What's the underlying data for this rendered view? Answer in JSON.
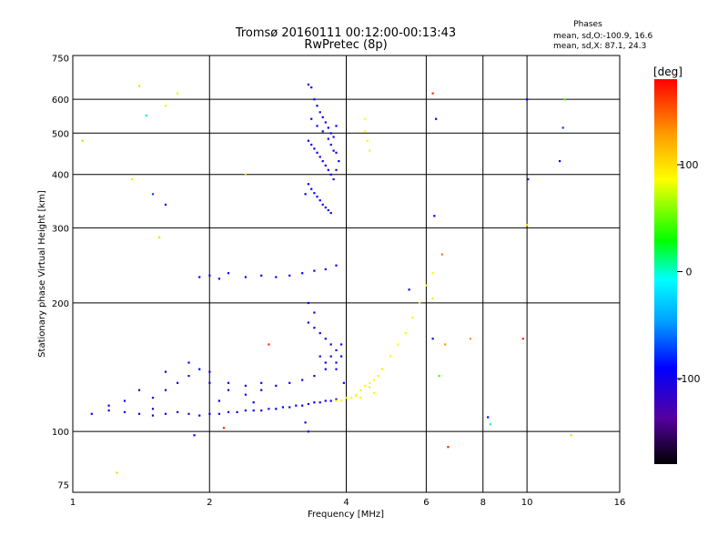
{
  "chart_data": {
    "type": "scatter",
    "title": "Tromsø 20160111 00:12:00-00:13:43",
    "subtitle": "RwPretec (8p)",
    "xlabel": "Frequency [MHz]",
    "ylabel": "Stationary phase Virtual Height [km]",
    "x_scale": "log",
    "y_scale": "log",
    "xlim": [
      1,
      16
    ],
    "ylim": [
      72,
      760
    ],
    "x_ticks": [
      1,
      2,
      4,
      6,
      8,
      10,
      16
    ],
    "y_ticks": [
      75,
      100,
      200,
      300,
      400,
      500,
      600,
      750
    ],
    "grid": true,
    "stats": {
      "heading": "Phases",
      "line_o": "mean, sd,O:-100.9, 16.6",
      "line_x": "mean, sd,X:  87.1, 24.3"
    },
    "colorbar": {
      "label": "[deg]",
      "ticks": [
        100,
        0,
        -100
      ],
      "range": [
        -180,
        180
      ],
      "colors": [
        "#000000",
        "#5500a0",
        "#0000ff",
        "#00a0ff",
        "#00ffff",
        "#00ff00",
        "#ffff00",
        "#ff9900",
        "#ff0000"
      ]
    },
    "series": [
      {
        "trace": "F2 layer (blue, O-mode)",
        "points": [
          [
            3.3,
            650,
            -110
          ],
          [
            3.35,
            640,
            -110
          ],
          [
            3.4,
            600,
            -105
          ],
          [
            3.45,
            580,
            -100
          ],
          [
            3.5,
            560,
            -120
          ],
          [
            3.55,
            545,
            -100
          ],
          [
            3.6,
            530,
            -110
          ],
          [
            3.65,
            515,
            -100
          ],
          [
            3.7,
            500,
            -105
          ],
          [
            3.75,
            490,
            -110
          ],
          [
            3.3,
            480,
            -100
          ],
          [
            3.35,
            470,
            -110
          ],
          [
            3.4,
            460,
            -105
          ],
          [
            3.45,
            450,
            -100
          ],
          [
            3.5,
            440,
            -115
          ],
          [
            3.55,
            430,
            -100
          ],
          [
            3.6,
            420,
            -110
          ],
          [
            3.65,
            410,
            -100
          ],
          [
            3.7,
            400,
            -105
          ],
          [
            3.75,
            390,
            -110
          ],
          [
            3.3,
            380,
            -100
          ],
          [
            3.35,
            370,
            -105
          ],
          [
            3.4,
            362,
            -110
          ],
          [
            3.45,
            355,
            -100
          ],
          [
            3.5,
            348,
            -105
          ],
          [
            3.55,
            340,
            -110
          ],
          [
            3.6,
            335,
            -100
          ],
          [
            3.65,
            330,
            -105
          ],
          [
            3.7,
            325,
            -110
          ],
          [
            3.8,
            520,
            -100
          ],
          [
            3.8,
            450,
            -105
          ],
          [
            3.8,
            410,
            -110
          ],
          [
            3.75,
            455,
            -100
          ],
          [
            3.7,
            470,
            -105
          ],
          [
            3.65,
            485,
            -110
          ],
          [
            3.55,
            505,
            -100
          ],
          [
            3.45,
            520,
            -105
          ],
          [
            3.35,
            540,
            -110
          ],
          [
            3.25,
            360,
            -100
          ],
          [
            3.85,
            430,
            -105
          ]
        ]
      },
      {
        "trace": "E layer (blue, O-mode)",
        "points": [
          [
            1.1,
            110,
            -105
          ],
          [
            1.2,
            112,
            -110
          ],
          [
            1.3,
            111,
            -100
          ],
          [
            1.4,
            110,
            -105
          ],
          [
            1.5,
            109,
            -110
          ],
          [
            1.6,
            110,
            -100
          ],
          [
            1.7,
            111,
            -105
          ],
          [
            1.8,
            110,
            -110
          ],
          [
            1.9,
            109,
            -100
          ],
          [
            2.0,
            110,
            -105
          ],
          [
            2.1,
            110,
            -110
          ],
          [
            2.2,
            111,
            -100
          ],
          [
            2.3,
            111,
            -105
          ],
          [
            2.4,
            112,
            -110
          ],
          [
            2.5,
            112,
            -100
          ],
          [
            2.6,
            112,
            -105
          ],
          [
            2.7,
            113,
            -110
          ],
          [
            2.8,
            113,
            -100
          ],
          [
            2.9,
            114,
            -105
          ],
          [
            3.0,
            114,
            -110
          ],
          [
            3.1,
            115,
            -100
          ],
          [
            3.2,
            115,
            -105
          ],
          [
            3.3,
            116,
            -110
          ],
          [
            3.4,
            117,
            -100
          ],
          [
            3.5,
            117,
            -105
          ],
          [
            3.6,
            118,
            -110
          ],
          [
            3.7,
            118,
            -100
          ],
          [
            3.8,
            119,
            -105
          ],
          [
            1.5,
            120,
            -110
          ],
          [
            1.6,
            125,
            -100
          ],
          [
            1.7,
            130,
            -105
          ],
          [
            1.8,
            135,
            -110
          ],
          [
            1.9,
            140,
            -100
          ],
          [
            2.0,
            130,
            -105
          ],
          [
            2.2,
            125,
            -110
          ],
          [
            2.4,
            122,
            -100
          ],
          [
            2.6,
            125,
            -105
          ],
          [
            2.8,
            128,
            -110
          ],
          [
            3.0,
            130,
            -100
          ],
          [
            3.2,
            132,
            -105
          ],
          [
            3.4,
            135,
            -110
          ],
          [
            3.6,
            140,
            -100
          ],
          [
            3.8,
            145,
            -105
          ],
          [
            1.4,
            125,
            -110
          ],
          [
            1.6,
            138,
            -100
          ],
          [
            1.8,
            145,
            -105
          ],
          [
            2.0,
            138,
            -110
          ],
          [
            2.2,
            130,
            -100
          ],
          [
            2.4,
            128,
            -105
          ],
          [
            2.6,
            130,
            -110
          ],
          [
            3.3,
            180,
            -100
          ],
          [
            3.4,
            175,
            -105
          ],
          [
            3.5,
            170,
            -110
          ],
          [
            3.6,
            165,
            -100
          ],
          [
            3.7,
            160,
            -105
          ],
          [
            3.8,
            155,
            -110
          ],
          [
            3.3,
            200,
            -100
          ],
          [
            3.4,
            190,
            -105
          ],
          [
            3.5,
            150,
            -110
          ],
          [
            3.6,
            145,
            -100
          ],
          [
            3.7,
            150,
            -105
          ],
          [
            3.8,
            140,
            -110
          ],
          [
            3.9,
            150,
            -100
          ],
          [
            3.9,
            160,
            -105
          ],
          [
            3.95,
            130,
            -110
          ],
          [
            1.2,
            115,
            -100
          ],
          [
            1.3,
            118,
            -105
          ],
          [
            1.5,
            113,
            -110
          ],
          [
            2.1,
            118,
            -100
          ],
          [
            2.5,
            117,
            -105
          ]
        ]
      },
      {
        "trace": "Mid-height trace (blue, O-mode)",
        "points": [
          [
            1.9,
            230,
            -105
          ],
          [
            2.0,
            232,
            -110
          ],
          [
            2.1,
            228,
            -100
          ],
          [
            2.2,
            235,
            -105
          ],
          [
            2.4,
            230,
            -110
          ],
          [
            2.6,
            232,
            -100
          ],
          [
            2.8,
            230,
            -105
          ],
          [
            3.0,
            232,
            -110
          ],
          [
            3.2,
            235,
            -100
          ],
          [
            3.4,
            238,
            -105
          ],
          [
            3.6,
            240,
            -110
          ],
          [
            3.8,
            245,
            -100
          ]
        ]
      },
      {
        "trace": "Extraordinary trace (yellow, X-mode)",
        "points": [
          [
            3.8,
            118,
            90
          ],
          [
            3.9,
            118,
            85
          ],
          [
            4.0,
            120,
            95
          ],
          [
            4.1,
            120,
            88
          ],
          [
            4.2,
            122,
            90
          ],
          [
            4.3,
            125,
            85
          ],
          [
            4.4,
            128,
            95
          ],
          [
            4.5,
            130,
            88
          ],
          [
            4.6,
            132,
            90
          ],
          [
            4.7,
            135,
            85
          ],
          [
            4.8,
            140,
            95
          ],
          [
            5.0,
            150,
            88
          ],
          [
            5.2,
            160,
            90
          ],
          [
            5.4,
            170,
            85
          ],
          [
            5.6,
            185,
            95
          ],
          [
            5.8,
            200,
            88
          ],
          [
            6.0,
            220,
            90
          ],
          [
            6.2,
            235,
            85
          ],
          [
            4.4,
            505,
            90
          ],
          [
            4.45,
            480,
            95
          ],
          [
            4.5,
            455,
            85
          ],
          [
            4.4,
            540,
            88
          ],
          [
            6.2,
            205,
            80
          ],
          [
            4.6,
            123,
            90
          ],
          [
            4.5,
            127,
            85
          ],
          [
            4.3,
            120,
            95
          ],
          [
            4.2,
            121,
            90
          ]
        ]
      },
      {
        "trace": "Scattered points",
        "points": [
          [
            1.05,
            480,
            60
          ],
          [
            1.35,
            390,
            100
          ],
          [
            1.4,
            645,
            110
          ],
          [
            1.5,
            360,
            -80
          ],
          [
            1.6,
            340,
            -100
          ],
          [
            1.45,
            550,
            0
          ],
          [
            1.55,
            285,
            110
          ],
          [
            1.6,
            580,
            100
          ],
          [
            1.7,
            620,
            80
          ],
          [
            2.4,
            400,
            110
          ],
          [
            6.2,
            620,
            170
          ],
          [
            6.3,
            540,
            -100
          ],
          [
            6.25,
            320,
            -100
          ],
          [
            6.5,
            260,
            150
          ],
          [
            6.6,
            160,
            140
          ],
          [
            6.4,
            135,
            40
          ],
          [
            6.7,
            92,
            170
          ],
          [
            7.5,
            165,
            140
          ],
          [
            8.2,
            108,
            -100
          ],
          [
            8.3,
            104,
            0
          ],
          [
            9.8,
            165,
            170
          ],
          [
            10.0,
            600,
            -100
          ],
          [
            10.05,
            390,
            -100
          ],
          [
            10.0,
            305,
            110
          ],
          [
            12.0,
            515,
            -80
          ],
          [
            11.8,
            430,
            -100
          ],
          [
            12.1,
            600,
            40
          ],
          [
            12.5,
            98,
            110
          ],
          [
            1.25,
            80,
            110
          ],
          [
            1.85,
            98,
            -100
          ],
          [
            2.15,
            102,
            170
          ],
          [
            2.7,
            160,
            170
          ],
          [
            3.3,
            100,
            -100
          ],
          [
            3.25,
            105,
            -100
          ],
          [
            5.5,
            215,
            -100
          ],
          [
            6.2,
            165,
            -100
          ]
        ]
      }
    ]
  }
}
